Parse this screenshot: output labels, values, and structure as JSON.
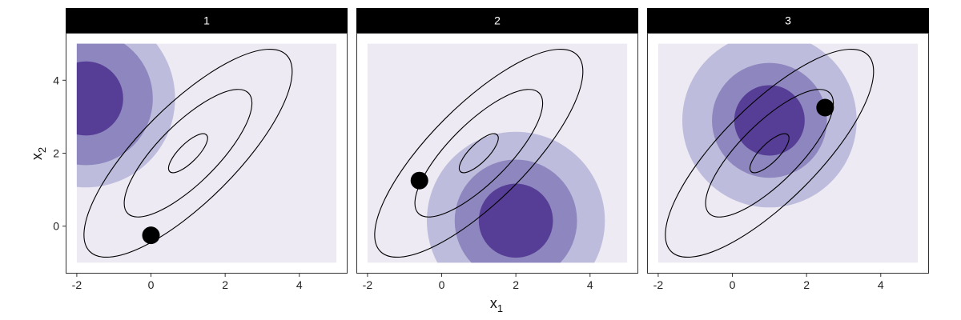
{
  "chart_data": {
    "type": "contour",
    "xlabel": "x",
    "xlabel_sub": "1",
    "ylabel": "x",
    "ylabel_sub": "2",
    "xlim": [
      -2.3,
      5.3
    ],
    "ylim": [
      -1.3,
      5.3
    ],
    "xticks": [
      -2,
      0,
      2,
      4
    ],
    "yticks": [
      0,
      2,
      4
    ],
    "grid_region": {
      "x": [
        -2,
        5
      ],
      "y": [
        -1,
        5
      ]
    },
    "colors": {
      "grid_fill": "#edeaf3",
      "band_outer": "#bebcdc",
      "band_middle": "#8e87bf",
      "band_inner": "#563d95",
      "strip_bg": "#000000",
      "contour": "#000000",
      "point": "#000000"
    },
    "target_ellipses": {
      "center": [
        1,
        2
      ],
      "angle_deg": 45,
      "semi_axes": [
        [
          0.7,
          0.25
        ],
        [
          2.3,
          0.8
        ],
        [
          3.75,
          1.3
        ]
      ]
    },
    "panels": [
      {
        "label": "1",
        "point": [
          0.0,
          -0.25
        ],
        "proposal": {
          "center": [
            -1.75,
            3.5
          ],
          "radii": [
            1.0,
            1.8,
            2.4
          ]
        }
      },
      {
        "label": "2",
        "point": [
          -0.6,
          1.25
        ],
        "proposal": {
          "center": [
            2.0,
            0.15
          ],
          "radii": [
            1.0,
            1.65,
            2.4
          ]
        }
      },
      {
        "label": "3",
        "point": [
          2.5,
          3.25
        ],
        "proposal": {
          "center": [
            1.0,
            2.9
          ],
          "radii": [
            0.95,
            1.55,
            2.35
          ]
        }
      }
    ]
  }
}
